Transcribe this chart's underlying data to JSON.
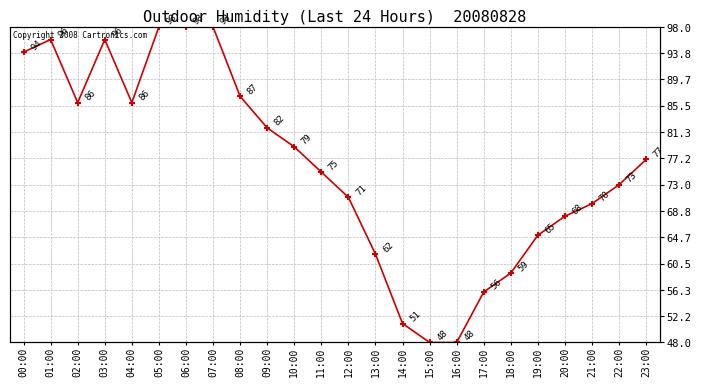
{
  "title": "Outdoor Humidity (Last 24 Hours)  20080828",
  "copyright": "Copyright 2008 Cartronics.com",
  "x_labels": [
    "00:00",
    "01:00",
    "02:00",
    "03:00",
    "04:00",
    "05:00",
    "06:00",
    "07:00",
    "08:00",
    "09:00",
    "10:00",
    "11:00",
    "12:00",
    "13:00",
    "14:00",
    "15:00",
    "16:00",
    "17:00",
    "18:00",
    "19:00",
    "20:00",
    "21:00",
    "22:00",
    "23:00"
  ],
  "x_values": [
    0,
    1,
    2,
    3,
    4,
    5,
    6,
    7,
    8,
    9,
    10,
    11,
    12,
    13,
    14,
    15,
    16,
    17,
    18,
    19,
    20,
    21,
    22,
    23
  ],
  "y_values": [
    94,
    96,
    86,
    96,
    86,
    98,
    98,
    98,
    87,
    82,
    79,
    75,
    71,
    62,
    51,
    48,
    48,
    56,
    59,
    65,
    68,
    70,
    73,
    77
  ],
  "point_labels": [
    "94",
    "96",
    "86",
    "96",
    "86",
    "98",
    "98",
    "98",
    "87",
    "82",
    "79",
    "75",
    "71",
    "62",
    "51",
    "48",
    "48",
    "56",
    "59",
    "65",
    "68",
    "70",
    "73",
    "77"
  ],
  "ylim": [
    48.0,
    98.0
  ],
  "yticks": [
    48.0,
    52.2,
    56.3,
    60.5,
    64.7,
    68.8,
    73.0,
    77.2,
    81.3,
    85.5,
    89.7,
    93.8,
    98.0
  ],
  "ytick_labels": [
    "48.0",
    "52.2",
    "56.3",
    "60.5",
    "64.7",
    "68.8",
    "73.0",
    "77.2",
    "81.3",
    "85.5",
    "89.7",
    "93.8",
    "98.0"
  ],
  "line_color": "#cc0000",
  "marker_color": "#cc0000",
  "bg_color": "#ffffff",
  "grid_color": "#bbbbbb",
  "title_fontsize": 11,
  "label_fontsize": 7
}
